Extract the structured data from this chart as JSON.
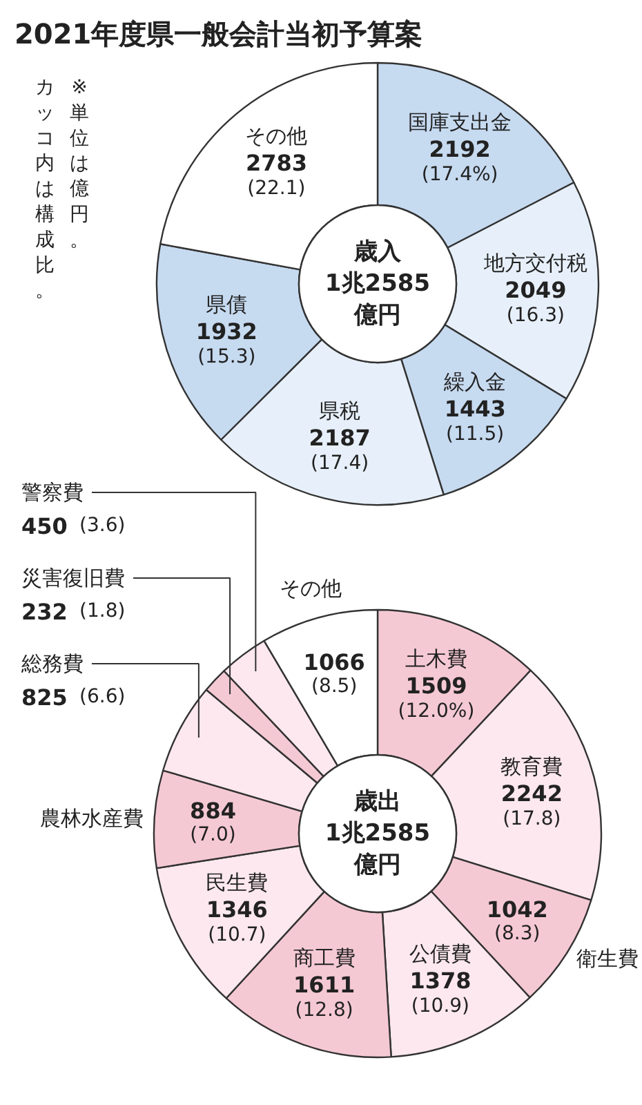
{
  "chart_data": [
    {
      "type": "donut",
      "title": "2021年度県一般会計当初予算案",
      "categories": [
        "国庫支出金",
        "地方交付税",
        "繰入金",
        "県税",
        "県債",
        "その他"
      ],
      "values": [
        2192,
        2049,
        1443,
        2187,
        1932,
        2783
      ],
      "colors": [
        "#c6daf0",
        "#e7f0fa",
        "#c6daf0",
        "#e7f0fa",
        "#c6daf0",
        "#ffffff"
      ],
      "value_labels": [
        "2192 (17.4%)",
        "2049 (16.3)",
        "1443 (11.5)",
        "2187 (17.4)",
        "1932 (15.3)",
        "2783 (22.1)"
      ],
      "annotations": [
        "歳入\n1兆2585\n億円",
        "※単位は億円。",
        "カッコ内は構成比。"
      ]
    },
    {
      "type": "donut",
      "categories": [
        "土木費",
        "教育費",
        "衛生費",
        "公債費",
        "商工費",
        "民生費",
        "農林水産費",
        "総務費",
        "災害復旧費",
        "警察費",
        "その他"
      ],
      "values": [
        1509,
        2242,
        1042,
        1378,
        1611,
        1346,
        884,
        825,
        232,
        450,
        1066
      ],
      "colors": [
        "#f5c9d4",
        "#fce8ee",
        "#f5c9d4",
        "#fce8ee",
        "#f5c9d4",
        "#fce8ee",
        "#f5c9d4",
        "#fce8ee",
        "#f5c9d4",
        "#fce8ee",
        "#ffffff"
      ],
      "value_labels": [
        "1509 (12.0%)",
        "2242 (17.8)",
        "1042 (8.3)",
        "1378 (10.9)",
        "1611 (12.8)",
        "1346 (10.7)",
        "884 (7.0)",
        "825 (6.6)",
        "232 (1.8)",
        "450 (3.6)",
        "1066 (8.5)"
      ],
      "annotations": [
        "歳出\n1兆2585\n億円"
      ]
    }
  ]
}
